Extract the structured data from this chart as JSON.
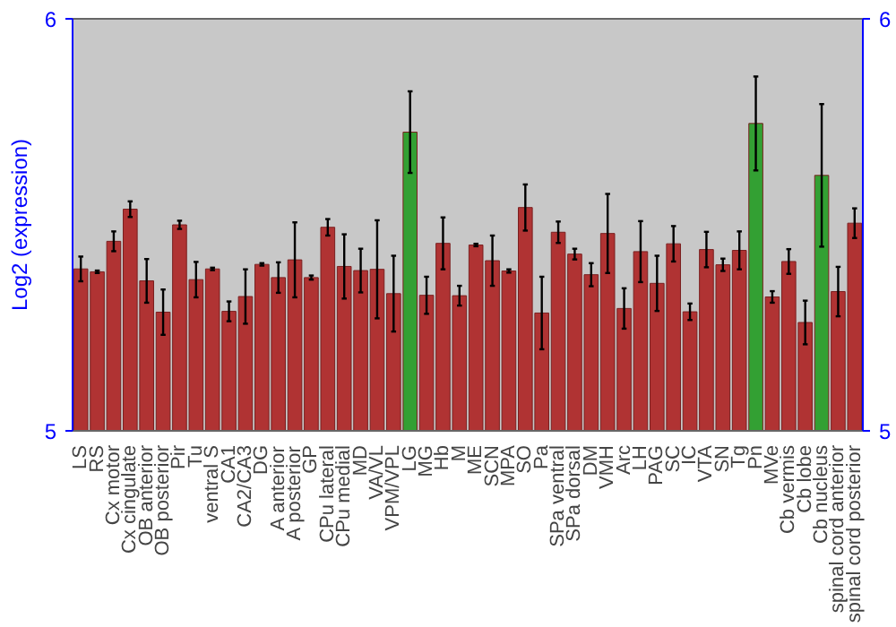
{
  "chart_data": {
    "type": "bar",
    "ylabel": "Log2 (expression)",
    "categories": [
      "LS",
      "RS",
      "Cx motor",
      "Cx cingulate",
      "OB anterior",
      "OB posterior",
      "Pir",
      "Tu",
      "ventral S",
      "CA1",
      "CA2/CA3",
      "DG",
      "A anterior",
      "A posterior",
      "GP",
      "CPu lateral",
      "CPu medial",
      "MD",
      "VA/VL",
      "VPM/VPL",
      "LG",
      "MG",
      "Hb",
      "M",
      "ME",
      "SCN",
      "MPA",
      "SO",
      "Pa",
      "SPa ventral",
      "SPa dorsal",
      "DM",
      "VMH",
      "Arc",
      "LH",
      "PAG",
      "SC",
      "IC",
      "VTA",
      "SN",
      "Tg",
      "Pn",
      "MVe",
      "Cb vermis",
      "Cb lobe",
      "Cb nucleus",
      "spinal cord anterior",
      "spinal cord posterior"
    ],
    "values": [
      5.393,
      5.386,
      5.46,
      5.538,
      5.364,
      5.288,
      5.5,
      5.367,
      5.393,
      5.29,
      5.326,
      5.404,
      5.372,
      5.415,
      5.372,
      5.494,
      5.399,
      5.389,
      5.392,
      5.333,
      5.725,
      5.329,
      5.455,
      5.328,
      5.451,
      5.413,
      5.388,
      5.542,
      5.286,
      5.482,
      5.429,
      5.379,
      5.479,
      5.297,
      5.435,
      5.358,
      5.454,
      5.289,
      5.44,
      5.403,
      5.438,
      5.746,
      5.325,
      5.411,
      5.263,
      5.62,
      5.338,
      5.504
    ],
    "errors": [
      0.03,
      0.003,
      0.024,
      0.019,
      0.053,
      0.055,
      0.01,
      0.043,
      0.003,
      0.024,
      0.066,
      0.003,
      0.037,
      0.091,
      0.005,
      0.02,
      0.078,
      0.053,
      0.119,
      0.092,
      0.099,
      0.045,
      0.063,
      0.024,
      0.003,
      0.061,
      0.004,
      0.056,
      0.088,
      0.026,
      0.013,
      0.028,
      0.096,
      0.049,
      0.074,
      0.067,
      0.043,
      0.02,
      0.043,
      0.015,
      0.046,
      0.114,
      0.014,
      0.03,
      0.053,
      0.173,
      0.06,
      0.036
    ],
    "colors": [
      "#b03333",
      "#b03333",
      "#b03333",
      "#b03333",
      "#b03333",
      "#b03333",
      "#b03333",
      "#b03333",
      "#b03333",
      "#b03333",
      "#b03333",
      "#b03333",
      "#b03333",
      "#b03333",
      "#b03333",
      "#b03333",
      "#b03333",
      "#b03333",
      "#b03333",
      "#b03333",
      "#33a033",
      "#b03333",
      "#b03333",
      "#b03333",
      "#b03333",
      "#b03333",
      "#b03333",
      "#b03333",
      "#b03333",
      "#b03333",
      "#b03333",
      "#b03333",
      "#b03333",
      "#b03333",
      "#b03333",
      "#b03333",
      "#b03333",
      "#b03333",
      "#b03333",
      "#b03333",
      "#b03333",
      "#33a033",
      "#b03333",
      "#b03333",
      "#b03333",
      "#33a033",
      "#b03333",
      "#b03333"
    ],
    "ylim": [
      5,
      6
    ],
    "yticks": [
      5,
      6
    ],
    "y2lim": [
      5,
      6
    ],
    "y2ticks": [
      5,
      6
    ]
  }
}
